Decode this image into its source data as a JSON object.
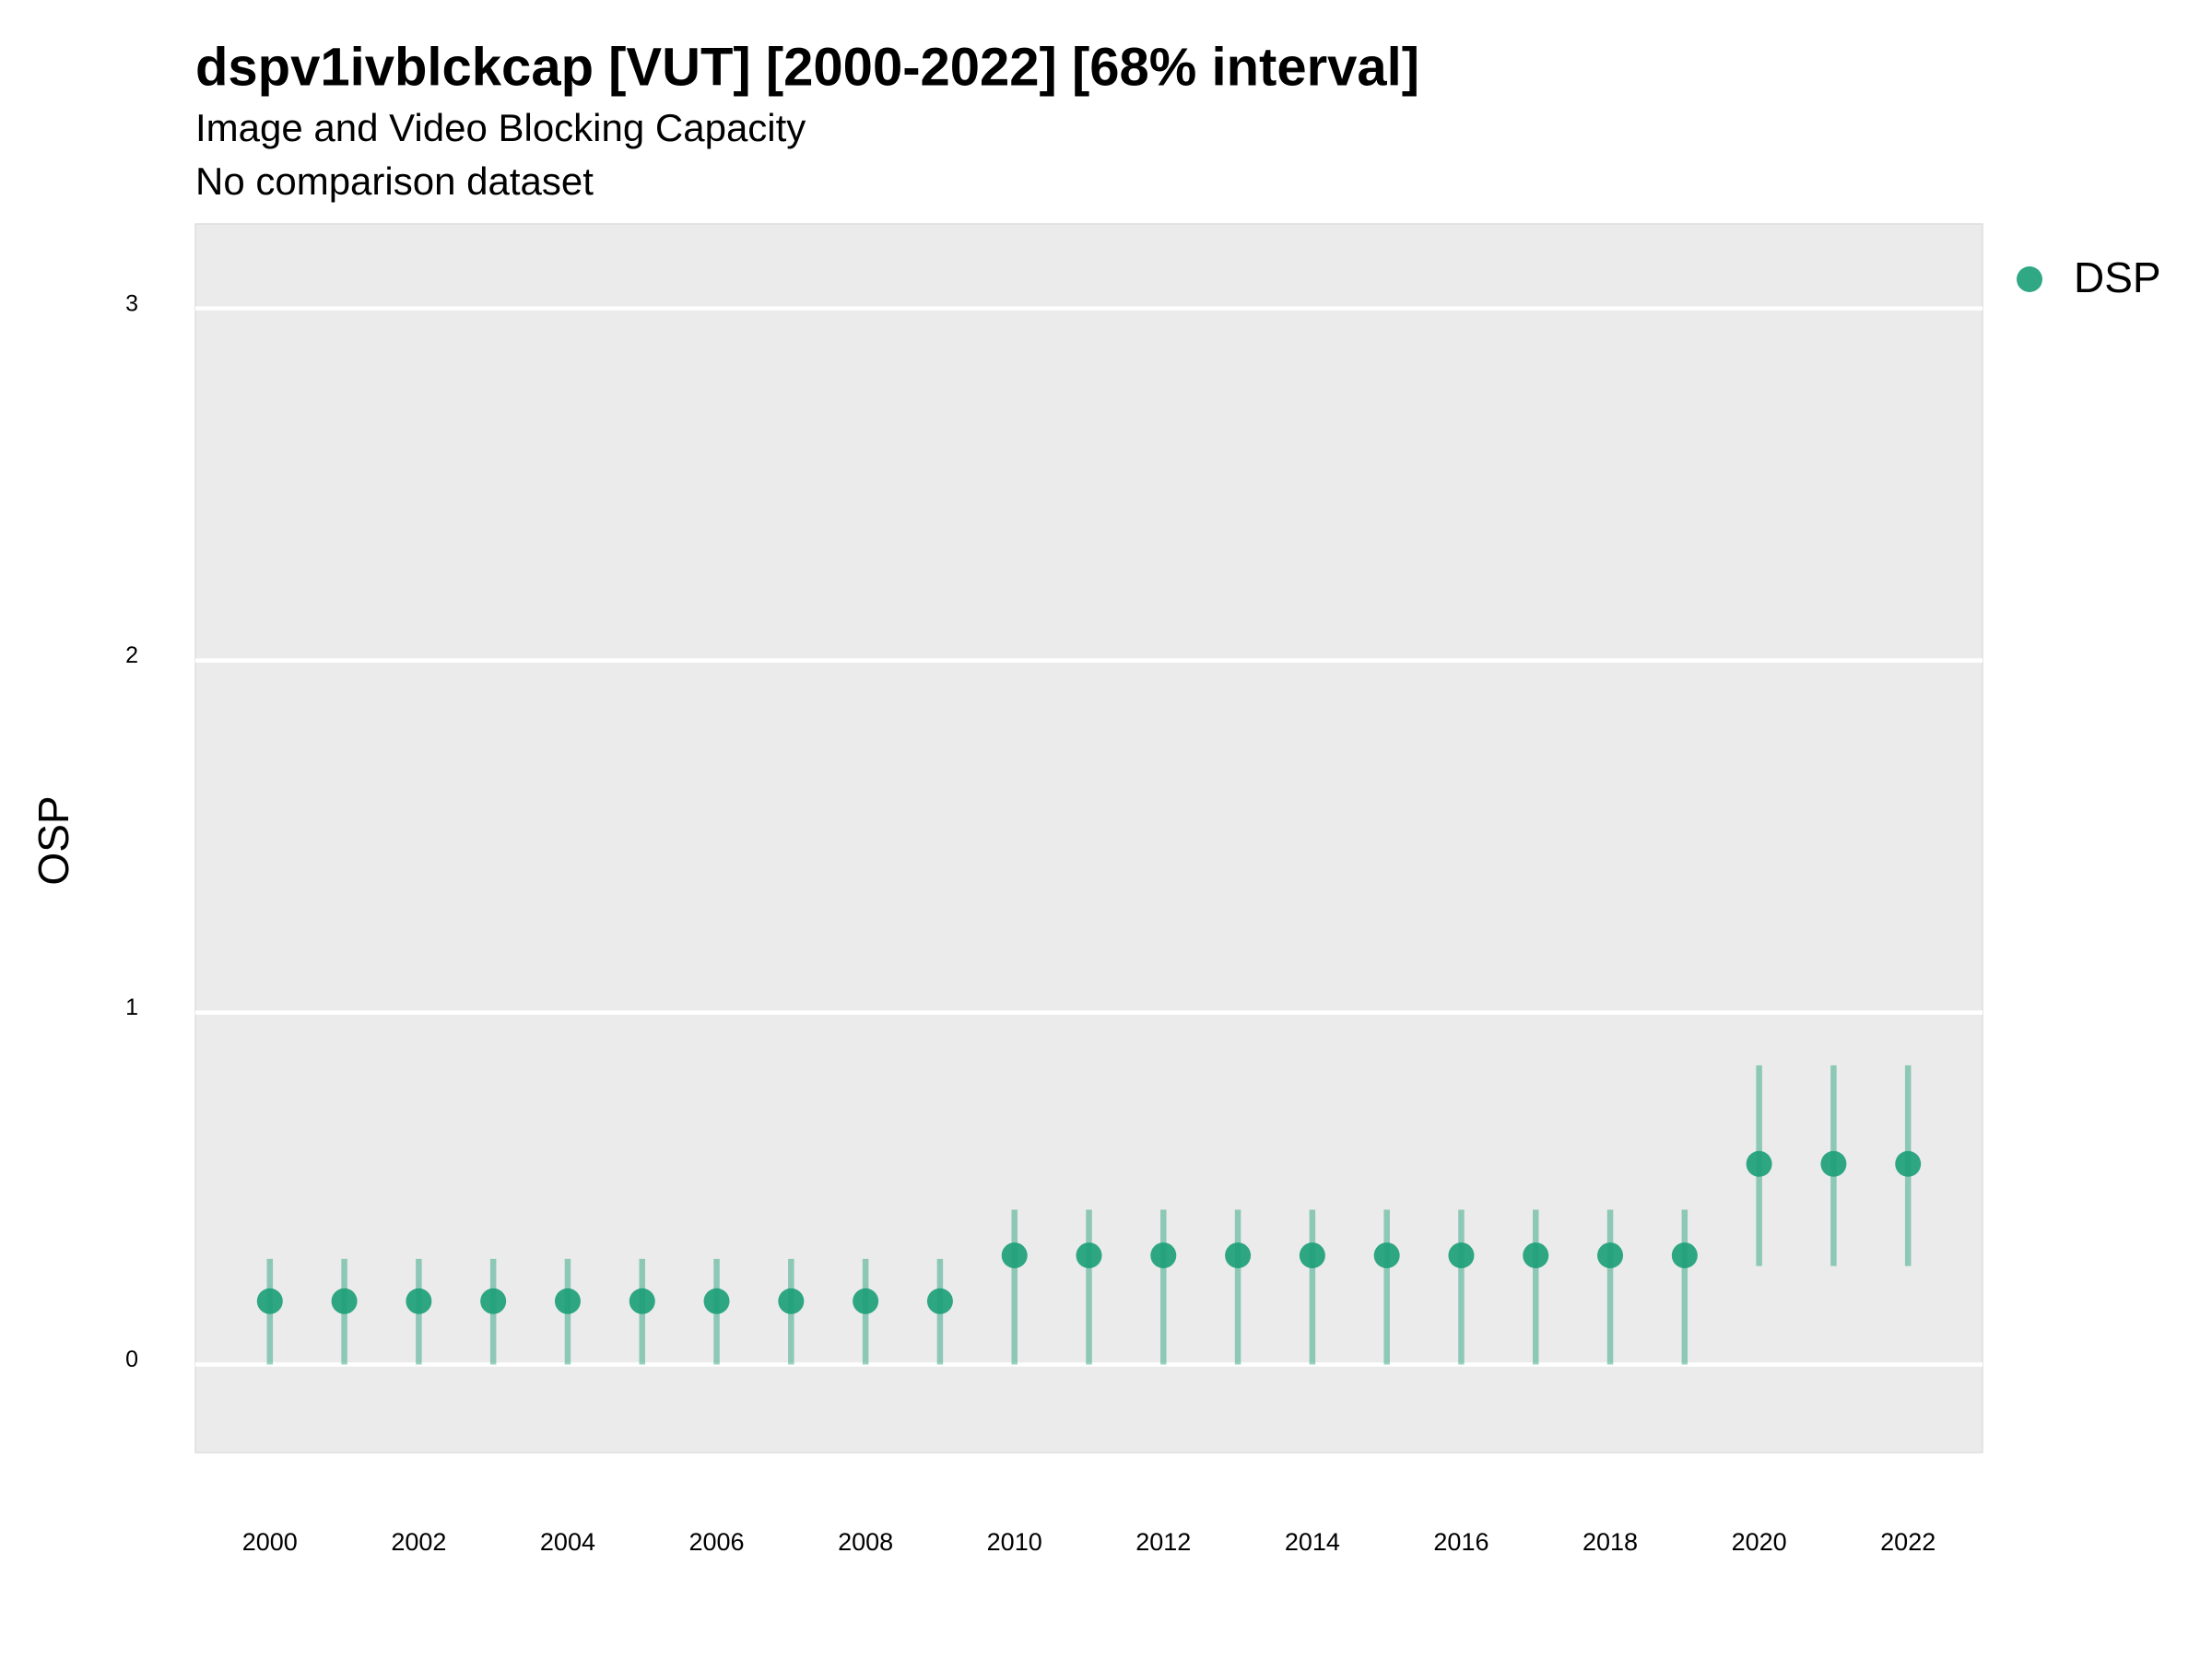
{
  "chart_data": {
    "type": "pointrange",
    "title": "dspv1ivblckcap [VUT] [2000-2022] [68% interval]",
    "subtitle": "Image and Video Blocking Capacity",
    "note": "No comparison dataset",
    "y_label": "OSP",
    "x": [
      2000,
      2001,
      2002,
      2003,
      2004,
      2005,
      2006,
      2007,
      2008,
      2009,
      2010,
      2011,
      2012,
      2013,
      2014,
      2015,
      2016,
      2017,
      2018,
      2019,
      2020,
      2021,
      2022
    ],
    "series": [
      {
        "name": "DSP",
        "color": "#1b9e77",
        "values": [
          0.18,
          0.18,
          0.18,
          0.18,
          0.18,
          0.18,
          0.18,
          0.18,
          0.18,
          0.18,
          0.31,
          0.31,
          0.31,
          0.31,
          0.31,
          0.31,
          0.31,
          0.31,
          0.31,
          0.31,
          0.57,
          0.57,
          0.57
        ],
        "lower": [
          0,
          0,
          0,
          0,
          0,
          0,
          0,
          0,
          0,
          0,
          0,
          0,
          0,
          0,
          0,
          0,
          0,
          0,
          0,
          0,
          0.28,
          0.28,
          0.28
        ],
        "upper": [
          0.3,
          0.3,
          0.3,
          0.3,
          0.3,
          0.3,
          0.3,
          0.3,
          0.3,
          0.3,
          0.44,
          0.44,
          0.44,
          0.44,
          0.44,
          0.44,
          0.44,
          0.44,
          0.44,
          0.44,
          0.85,
          0.85,
          0.85
        ]
      }
    ],
    "xlim": [
      1999,
      2023
    ],
    "xticks": [
      2000,
      2002,
      2004,
      2006,
      2008,
      2010,
      2012,
      2014,
      2016,
      2018,
      2020,
      2022
    ],
    "ylim": [
      -0.25,
      3.24
    ],
    "yticks": [
      0,
      1,
      2,
      3
    ],
    "grid": true,
    "legend": "right"
  }
}
